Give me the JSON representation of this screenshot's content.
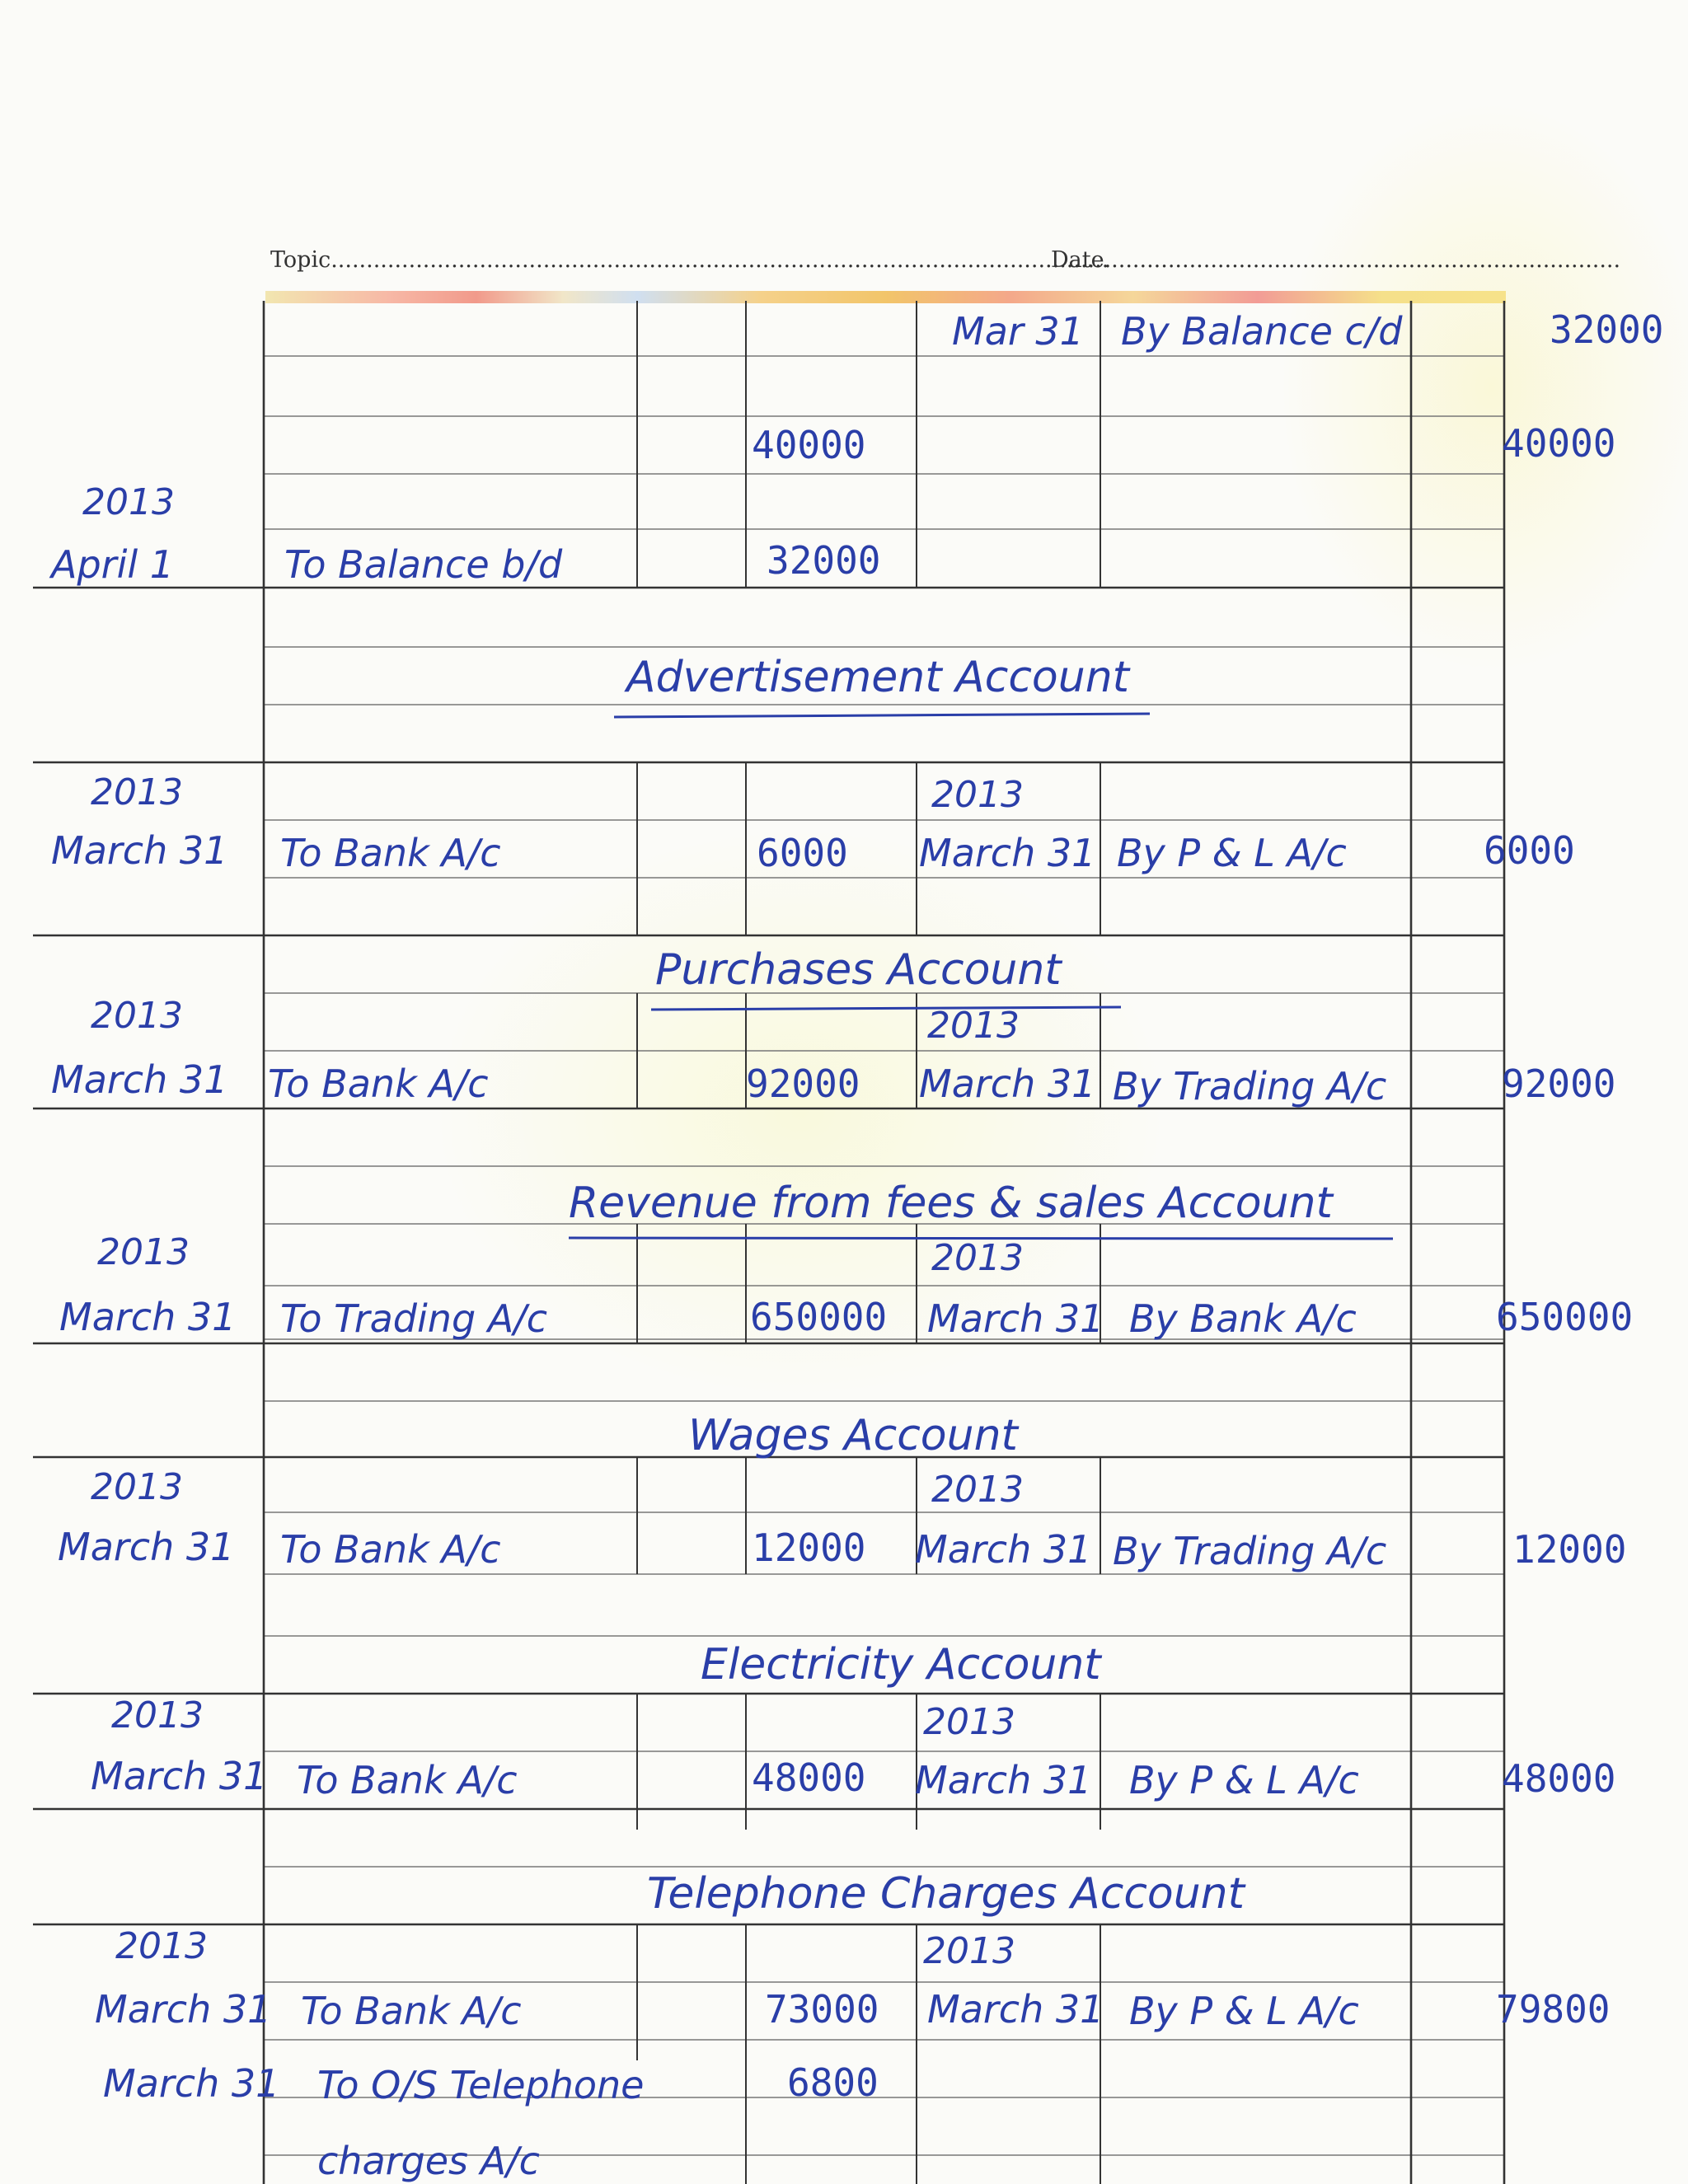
{
  "header": {
    "topic_label": "Topic",
    "date_label": "Date"
  },
  "opening_section": {
    "top_row": {
      "date": "Mar 31",
      "particulars": "By Balance c/d",
      "amount": "32000"
    },
    "totals": {
      "debit": "40000",
      "credit": "40000"
    },
    "opening_year": "2013",
    "opening_row": {
      "date": "April 1",
      "particulars": "To Balance b/d",
      "amount": "32000"
    }
  },
  "accounts": [
    {
      "title": "Advertisement Account",
      "debit": [
        {
          "year": "2013",
          "date": "March 31",
          "particulars": "To Bank A/c",
          "amount": "6000"
        }
      ],
      "credit": [
        {
          "year": "2013",
          "date": "March 31",
          "particulars": "By P & L A/c",
          "amount": "6000"
        }
      ]
    },
    {
      "title": "Purchases Account",
      "debit": [
        {
          "year": "2013",
          "date": "March 31",
          "particulars": "To Bank A/c",
          "amount": "92000"
        }
      ],
      "credit": [
        {
          "year": "2013",
          "date": "March 31",
          "particulars": "By Trading A/c",
          "amount": "92000"
        }
      ]
    },
    {
      "title": "Revenue from fees & sales Account",
      "debit": [
        {
          "year": "2013",
          "date": "March 31",
          "particulars": "To Trading A/c",
          "amount": "650000"
        }
      ],
      "credit": [
        {
          "year": "2013",
          "date": "March 31",
          "particulars": "By Bank A/c",
          "amount": "650000"
        }
      ]
    },
    {
      "title": "Wages Account",
      "debit": [
        {
          "year": "2013",
          "date": "March 31",
          "particulars": "To Bank A/c",
          "amount": "12000"
        }
      ],
      "credit": [
        {
          "year": "2013",
          "date": "March 31",
          "particulars": "By Trading A/c",
          "amount": "12000"
        }
      ]
    },
    {
      "title": "Electricity Account",
      "debit": [
        {
          "year": "2013",
          "date": "March 31",
          "particulars": "To Bank A/c",
          "amount": "48000"
        }
      ],
      "credit": [
        {
          "year": "2013",
          "date": "March 31",
          "particulars": "By P & L A/c",
          "amount": "48000"
        }
      ]
    },
    {
      "title": "Telephone Charges Account",
      "debit": [
        {
          "year": "2013",
          "date": "March 31",
          "particulars": "To Bank A/c",
          "amount": "73000"
        },
        {
          "date": "March 31",
          "particulars": "To O/S Telephone",
          "particulars_cont": "charges A/c",
          "amount": "6800"
        }
      ],
      "credit": [
        {
          "year": "2013",
          "date": "March 31",
          "particulars": "By P & L A/c",
          "amount": "79800"
        }
      ]
    }
  ]
}
